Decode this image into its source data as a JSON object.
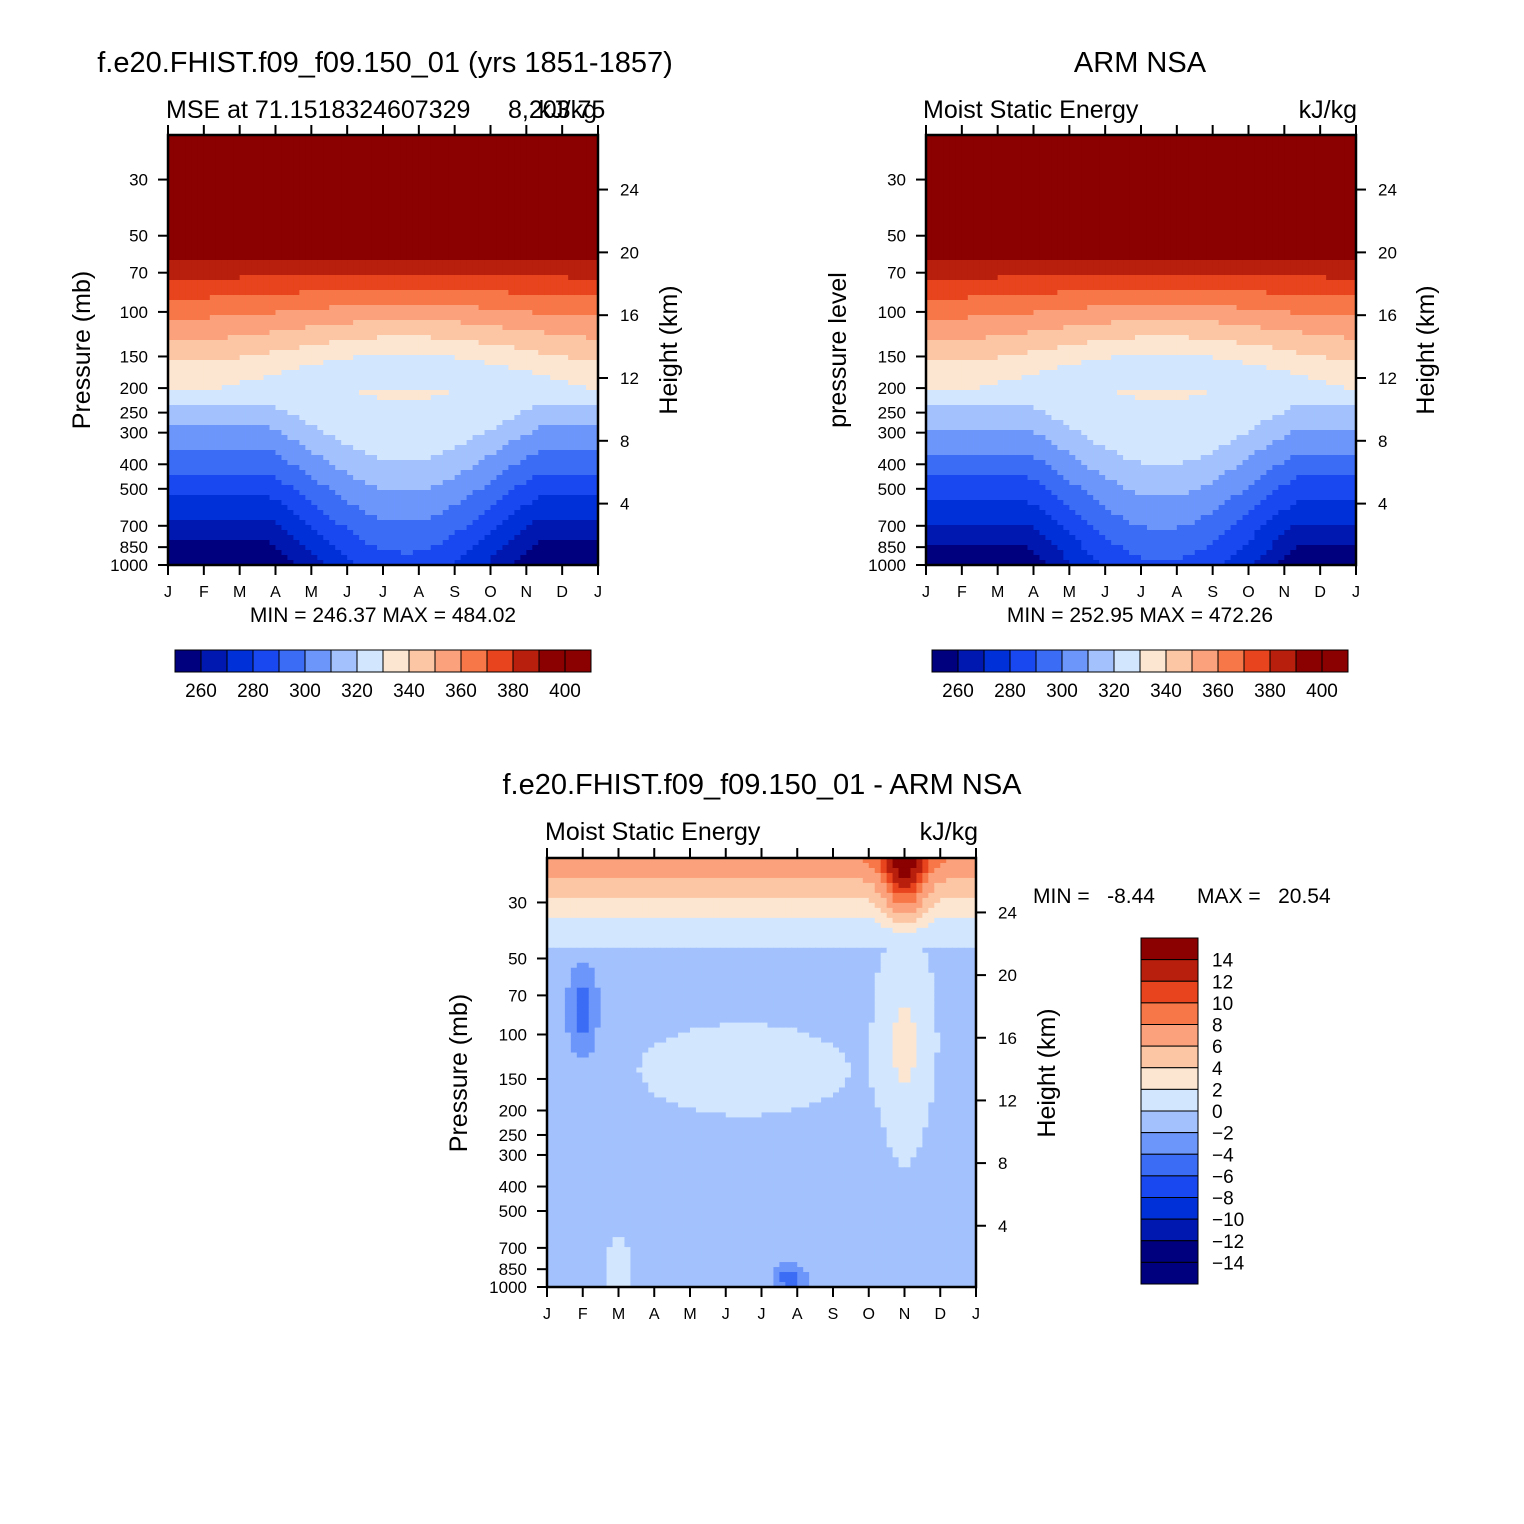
{
  "colors": {
    "mse": [
      "#00007f",
      "#0018b0",
      "#0030d8",
      "#1a48f0",
      "#3a6cf6",
      "#6d96fb",
      "#a3c2fd",
      "#d2e6fe",
      "#fde6d1",
      "#fcc6a5",
      "#fba27c",
      "#f87748",
      "#e8441d",
      "#b81f0c",
      "#8b0000"
    ],
    "diff": [
      "#00007f",
      "#0018b0",
      "#0030d8",
      "#1a48f0",
      "#3a6cf6",
      "#6d96fb",
      "#a3c2fd",
      "#d2e6fe",
      "#fde6d1",
      "#fcc6a5",
      "#fba27c",
      "#f87748",
      "#e8441d",
      "#b81f0c",
      "#8b0000"
    ]
  },
  "chart_data": [
    {
      "type": "heatmap",
      "kind": "contour",
      "title": "f.e20.FHIST.f09_f09.150_01 (yrs 1851-1857)",
      "left_title": "MSE at 71.1518324607329",
      "right_title": "kJ/kg",
      "overlap_text": "8,203.75",
      "ylabel": "Pressure (mb)",
      "y2label": "Height (km)",
      "x_ticks": [
        "J",
        "F",
        "M",
        "A",
        "M",
        "J",
        "J",
        "A",
        "S",
        "O",
        "N",
        "D",
        "J"
      ],
      "y_ticks": [
        "30",
        "50",
        "70",
        "100",
        "150",
        "200",
        "250",
        "300",
        "400",
        "500",
        "700",
        "850",
        "1000"
      ],
      "y2_ticks": [
        "24",
        "20",
        "16",
        "12",
        "8",
        "4"
      ],
      "stats": "MIN = 246.37 MAX = 484.02",
      "min": 246.37,
      "max": 484.02,
      "levels": [
        260,
        270,
        280,
        290,
        300,
        310,
        320,
        330,
        340,
        350,
        360,
        370,
        380,
        390,
        400
      ],
      "colorbar_labels": [
        "260",
        "280",
        "300",
        "320",
        "340",
        "360",
        "380",
        "400"
      ]
    },
    {
      "type": "heatmap",
      "kind": "contour",
      "title": "ARM NSA",
      "left_title": "Moist Static Energy",
      "right_title": "kJ/kg",
      "ylabel": "pressure level",
      "y2label": "Height (km)",
      "x_ticks": [
        "J",
        "F",
        "M",
        "A",
        "M",
        "J",
        "J",
        "A",
        "S",
        "O",
        "N",
        "D",
        "J"
      ],
      "y_ticks": [
        "30",
        "50",
        "70",
        "100",
        "150",
        "200",
        "250",
        "300",
        "400",
        "500",
        "700",
        "850",
        "1000"
      ],
      "y2_ticks": [
        "24",
        "20",
        "16",
        "12",
        "8",
        "4"
      ],
      "stats": "MIN = 252.95 MAX = 472.26",
      "min": 252.95,
      "max": 472.26,
      "levels": [
        260,
        270,
        280,
        290,
        300,
        310,
        320,
        330,
        340,
        350,
        360,
        370,
        380,
        390,
        400
      ],
      "colorbar_labels": [
        "260",
        "280",
        "300",
        "320",
        "340",
        "360",
        "380",
        "400"
      ]
    },
    {
      "type": "heatmap",
      "kind": "contour",
      "title": "f.e20.FHIST.f09_f09.150_01 - ARM NSA",
      "left_title": "Moist Static Energy",
      "right_title": "kJ/kg",
      "ylabel": "Pressure (mb)",
      "y2label": "Height (km)",
      "x_ticks": [
        "J",
        "F",
        "M",
        "A",
        "M",
        "J",
        "J",
        "A",
        "S",
        "O",
        "N",
        "D",
        "J"
      ],
      "y_ticks": [
        "30",
        "50",
        "70",
        "100",
        "150",
        "200",
        "250",
        "300",
        "400",
        "500",
        "700",
        "850",
        "1000"
      ],
      "y2_ticks": [
        "24",
        "20",
        "16",
        "12",
        "8",
        "4"
      ],
      "stats_min": "MIN =   -8.44",
      "stats_max": "MAX =   20.54",
      "min": -8.44,
      "max": 20.54,
      "levels": [
        -14,
        -12,
        -10,
        -8,
        -6,
        -4,
        -2,
        0,
        2,
        4,
        6,
        8,
        10,
        12,
        14
      ],
      "colorbar_labels": [
        "14",
        "12",
        "10",
        "8",
        "6",
        "4",
        "2",
        "0",
        "−2",
        "−4",
        "−6",
        "−8",
        "−10",
        "−12",
        "−14"
      ]
    }
  ]
}
